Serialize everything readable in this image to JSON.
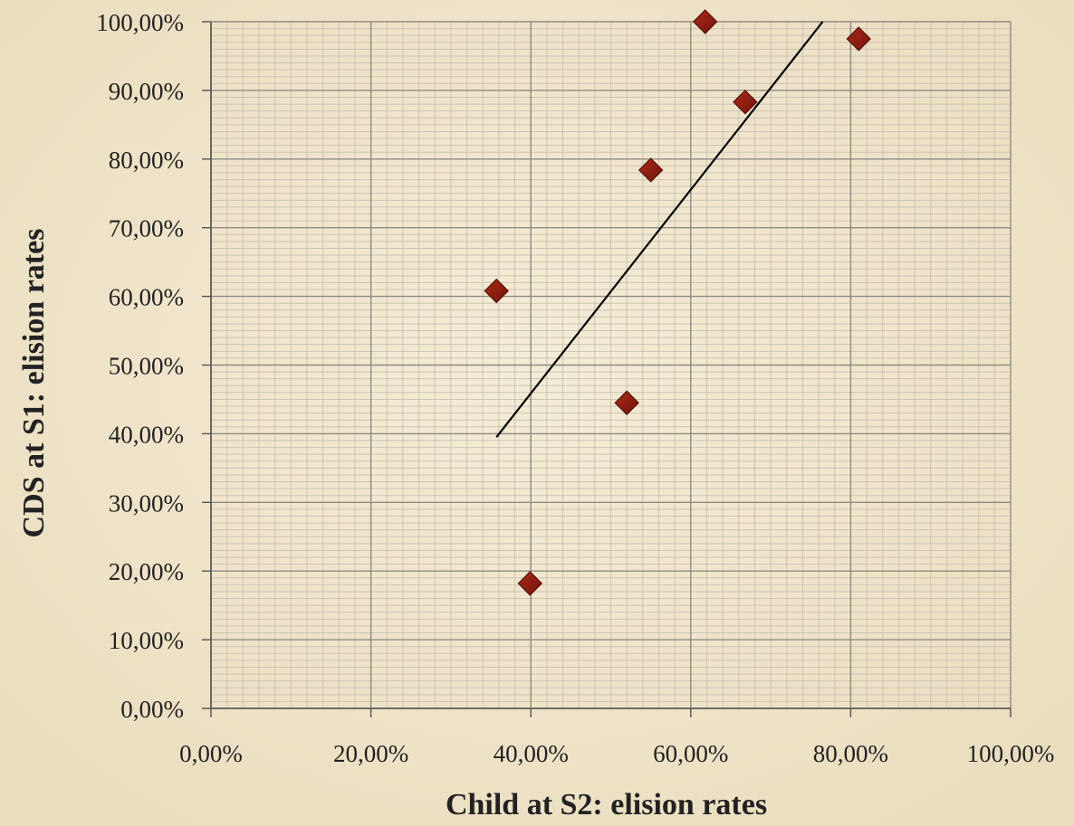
{
  "chart_data": {
    "type": "scatter",
    "title": "",
    "xlabel": "Child at S2: elision rates",
    "ylabel": "CDS at S1: elision rates",
    "xlim": [
      0,
      100
    ],
    "ylim": [
      0,
      100
    ],
    "x_major_step": 20,
    "x_minor_step": 2,
    "y_major_step": 10,
    "y_minor_step": 1,
    "x_ticks": [
      "0,00%",
      "20,00%",
      "40,00%",
      "60,00%",
      "80,00%",
      "100,00%"
    ],
    "y_ticks": [
      "0,00%",
      "10,00%",
      "20,00%",
      "30,00%",
      "40,00%",
      "50,00%",
      "60,00%",
      "70,00%",
      "80,00%",
      "90,00%",
      "100,00%"
    ],
    "grid": true,
    "legend": "none",
    "marker": "diamond",
    "marker_color": "#8b1a0f",
    "points": [
      {
        "x": 35.7,
        "y": 60.8
      },
      {
        "x": 39.9,
        "y": 18.2
      },
      {
        "x": 52.0,
        "y": 44.5
      },
      {
        "x": 55.0,
        "y": 78.4
      },
      {
        "x": 61.8,
        "y": 100.0
      },
      {
        "x": 66.8,
        "y": 88.3
      },
      {
        "x": 81.0,
        "y": 97.5
      }
    ],
    "trendline": {
      "x1": 35.7,
      "y1": 39.5,
      "x2": 76.5,
      "y2": 100.0,
      "color": "#000000"
    }
  }
}
